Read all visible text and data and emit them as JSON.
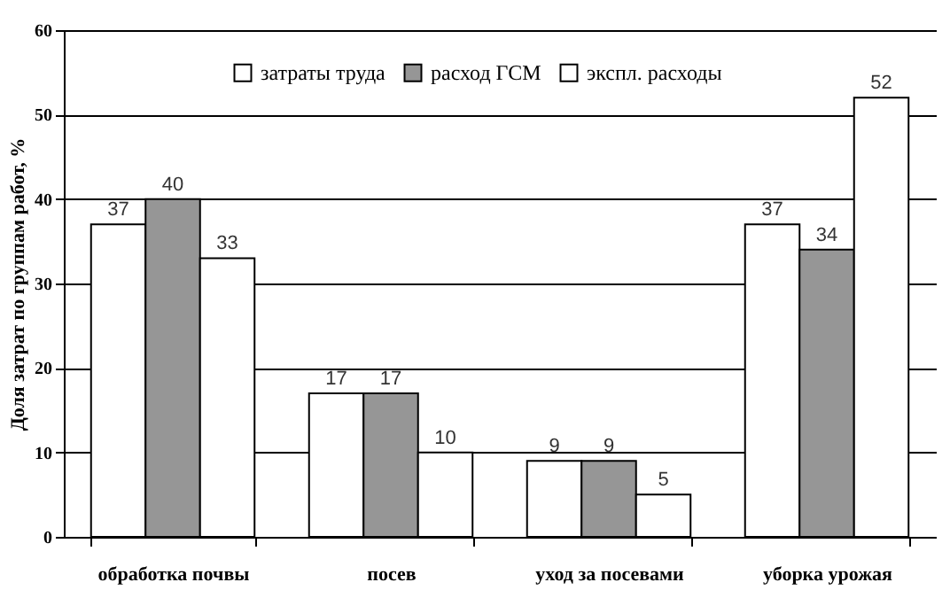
{
  "chart_data": {
    "type": "bar",
    "ylabel": "Доля затрат по группам работ, %",
    "categories": [
      "обработка почвы",
      "посев",
      "уход за посевами",
      "уборка урожая"
    ],
    "series": [
      {
        "name": "затраты труда",
        "color": "#ffffff",
        "values": [
          37,
          17,
          9,
          37
        ]
      },
      {
        "name": "расход ГСМ",
        "color": "#969696",
        "values": [
          40,
          17,
          9,
          34
        ]
      },
      {
        "name": "экспл. расходы",
        "color": "#ffffff",
        "values": [
          33,
          10,
          5,
          52
        ]
      }
    ],
    "ylim": [
      0,
      60
    ],
    "yticks": [
      0,
      10,
      20,
      30,
      40,
      50,
      60
    ],
    "grid": "y",
    "legend": "top",
    "data_labels": true
  }
}
